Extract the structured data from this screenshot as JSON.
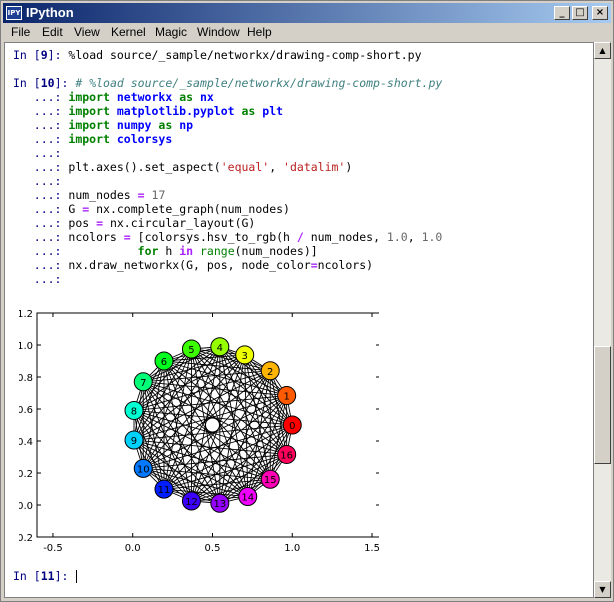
{
  "window": {
    "title": "IPython",
    "icon_text": "IPY",
    "controls": [
      "_",
      "□",
      "×"
    ]
  },
  "menu": [
    "File",
    "Edit",
    "View",
    "Kernel",
    "Magic",
    "Window",
    "Help"
  ],
  "console": {
    "in9": {
      "prompt": "In [",
      "num": "9",
      "close": "]: ",
      "code": "%load source/_sample/networkx/drawing-comp-short.py"
    },
    "in10": {
      "prompt": "In [",
      "num": "10",
      "close": "]: ",
      "code": "# %load source/_sample/networkx/drawing-comp-short.py"
    },
    "cont": "   ...: ",
    "lines": {
      "l1a": "import",
      "l1b": " networkx ",
      "l1c": "as",
      "l1d": " nx",
      "l2a": "import",
      "l2b": " matplotlib.pyplot ",
      "l2c": "as",
      "l2d": " plt",
      "l3a": "import",
      "l3b": " numpy ",
      "l3c": "as",
      "l3d": " np",
      "l4a": "import",
      "l4b": " colorsys",
      "l6a": "plt.axes().set_aspect(",
      "l6b": "'equal'",
      "l6c": ", ",
      "l6d": "'datalim'",
      "l6e": ")",
      "l8a": "num_nodes ",
      "l8b": "=",
      "l8c": " ",
      "l8d": "17",
      "l9a": "G ",
      "l9b": "=",
      "l9c": " nx.complete_graph(num_nodes)",
      "l10a": "pos ",
      "l10b": "=",
      "l10c": " nx.circular_layout(G)",
      "l11a": "ncolors ",
      "l11b": "=",
      "l11c": " [colorsys.hsv_to_rgb(h ",
      "l11d": "/",
      "l11e": " num_nodes, ",
      "l11f": "1.0",
      "l11g": ", ",
      "l11h": "1.0",
      "l12a": "          ",
      "l12b": "for",
      "l12c": " h ",
      "l12d": "in",
      "l12e": " ",
      "l12f": "range",
      "l12g": "(num_nodes)]",
      "l13a": "nx.draw_networkx(G, pos, node_color",
      "l13b": "=",
      "l13c": "ncolors)"
    },
    "in11": {
      "prompt": "In [",
      "num": "11",
      "close": "]: "
    }
  },
  "chart_data": {
    "type": "scatter",
    "title": "",
    "xlabel": "",
    "ylabel": "",
    "xlim": [
      -0.6,
      1.55
    ],
    "ylim": [
      -0.2,
      1.2
    ],
    "xticks": [
      "-0.5",
      "0.0",
      "0.5",
      "1.0",
      "1.5"
    ],
    "yticks": [
      "1.2",
      "1.0",
      "0.8",
      "0.6",
      "0.4",
      "0.2",
      "0.0",
      "-0.2"
    ],
    "node_count": 17,
    "node_labels": [
      "0",
      "1",
      "2",
      "3",
      "4",
      "5",
      "6",
      "7",
      "8",
      "9",
      "10",
      "11",
      "12",
      "13",
      "14",
      "15",
      "16"
    ],
    "node_x": [
      1.0,
      0.965,
      0.862,
      0.702,
      0.546,
      0.368,
      0.196,
      0.066,
      0.008,
      0.008,
      0.066,
      0.196,
      0.368,
      0.546,
      0.721,
      0.862,
      0.965
    ],
    "node_y": [
      0.5,
      0.684,
      0.839,
      0.938,
      0.989,
      0.975,
      0.9,
      0.77,
      0.591,
      0.406,
      0.229,
      0.099,
      0.025,
      0.011,
      0.053,
      0.161,
      0.316
    ],
    "node_colors": [
      "#ff0000",
      "#ff5a00",
      "#ffb400",
      "#f0ff00",
      "#96ff00",
      "#3cff00",
      "#00ff1e",
      "#00ff78",
      "#00ffd2",
      "#00d2ff",
      "#0078ff",
      "#001eff",
      "#3c00ff",
      "#9600ff",
      "#f000ff",
      "#ff00b4",
      "#ff005a"
    ],
    "center_node": {
      "x": 0.5,
      "y": 0.5,
      "color": "#ffffff"
    },
    "edges": "complete"
  }
}
